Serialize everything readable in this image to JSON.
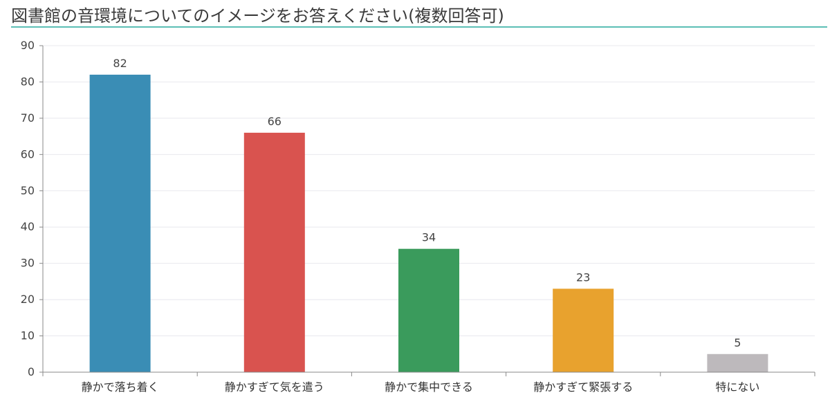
{
  "header": {
    "title": "図書館の音環境についてのイメージをお答えください(複数回答可)"
  },
  "colors": {
    "accent_rule": "#5bbfb5",
    "gridline": "#e8e8ee",
    "axis": "#888888"
  },
  "chart_data": {
    "type": "bar",
    "title": "図書館の音環境についてのイメージをお答えください(複数回答可)",
    "xlabel": "",
    "ylabel": "",
    "ylim": [
      0,
      90
    ],
    "yticks": [
      0,
      10,
      20,
      30,
      40,
      50,
      60,
      70,
      80,
      90
    ],
    "grid": true,
    "categories": [
      "静かで落ち着く",
      "静かすぎて気を遣う",
      "静かで集中できる",
      "静かすぎて緊張する",
      "特にない"
    ],
    "values": [
      82,
      66,
      34,
      23,
      5
    ],
    "bar_colors": [
      "#3a8db5",
      "#d9534f",
      "#3a9b5c",
      "#e8a22e",
      "#bdb9bc"
    ],
    "data_labels": [
      "82",
      "66",
      "34",
      "23",
      "5"
    ]
  }
}
